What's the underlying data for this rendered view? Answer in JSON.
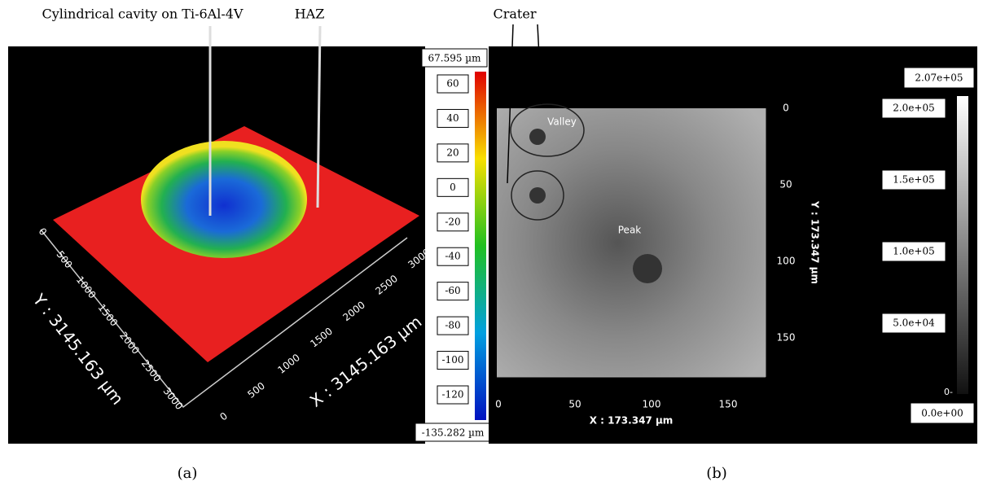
{
  "panel_a": {
    "annotations": [
      "Cylindrical cavity on Ti-6Al-4V",
      "HAZ"
    ],
    "x_axis_label": "X : 3145.163 µm",
    "y_axis_label": "Y : 3145.163 µm",
    "x_ticks": [
      "0",
      "500",
      "1000",
      "1500",
      "2000",
      "2500",
      "3000"
    ],
    "y_ticks": [
      "0",
      "500",
      "1000",
      "1500",
      "2000",
      "2500",
      "3000"
    ],
    "colorbar": {
      "max_label": "67.595 µm",
      "min_label": "-135.282 µm",
      "ticks": [
        "60",
        "40",
        "20",
        "0",
        "-20",
        "-40",
        "-60",
        "-80",
        "-100",
        "-120"
      ]
    },
    "caption": "(a)"
  },
  "panel_b": {
    "annotation": "Crater",
    "markers": [
      "Valley",
      "Peak"
    ],
    "x_axis_label": "X : 173.347 µm",
    "y_axis_label": "Y : 173.347 µm",
    "x_ticks": [
      "0",
      "50",
      "100",
      "150"
    ],
    "y_ticks": [
      "0",
      "50",
      "100",
      "150"
    ],
    "colorbar": {
      "max_label": "2.07e+05",
      "min_label": "0.0e+00",
      "zero_tick": "0-",
      "ticks": [
        "2.0e+05",
        "1.5e+05",
        "1.0e+05",
        "5.0e+04"
      ]
    },
    "caption": "(b)"
  }
}
